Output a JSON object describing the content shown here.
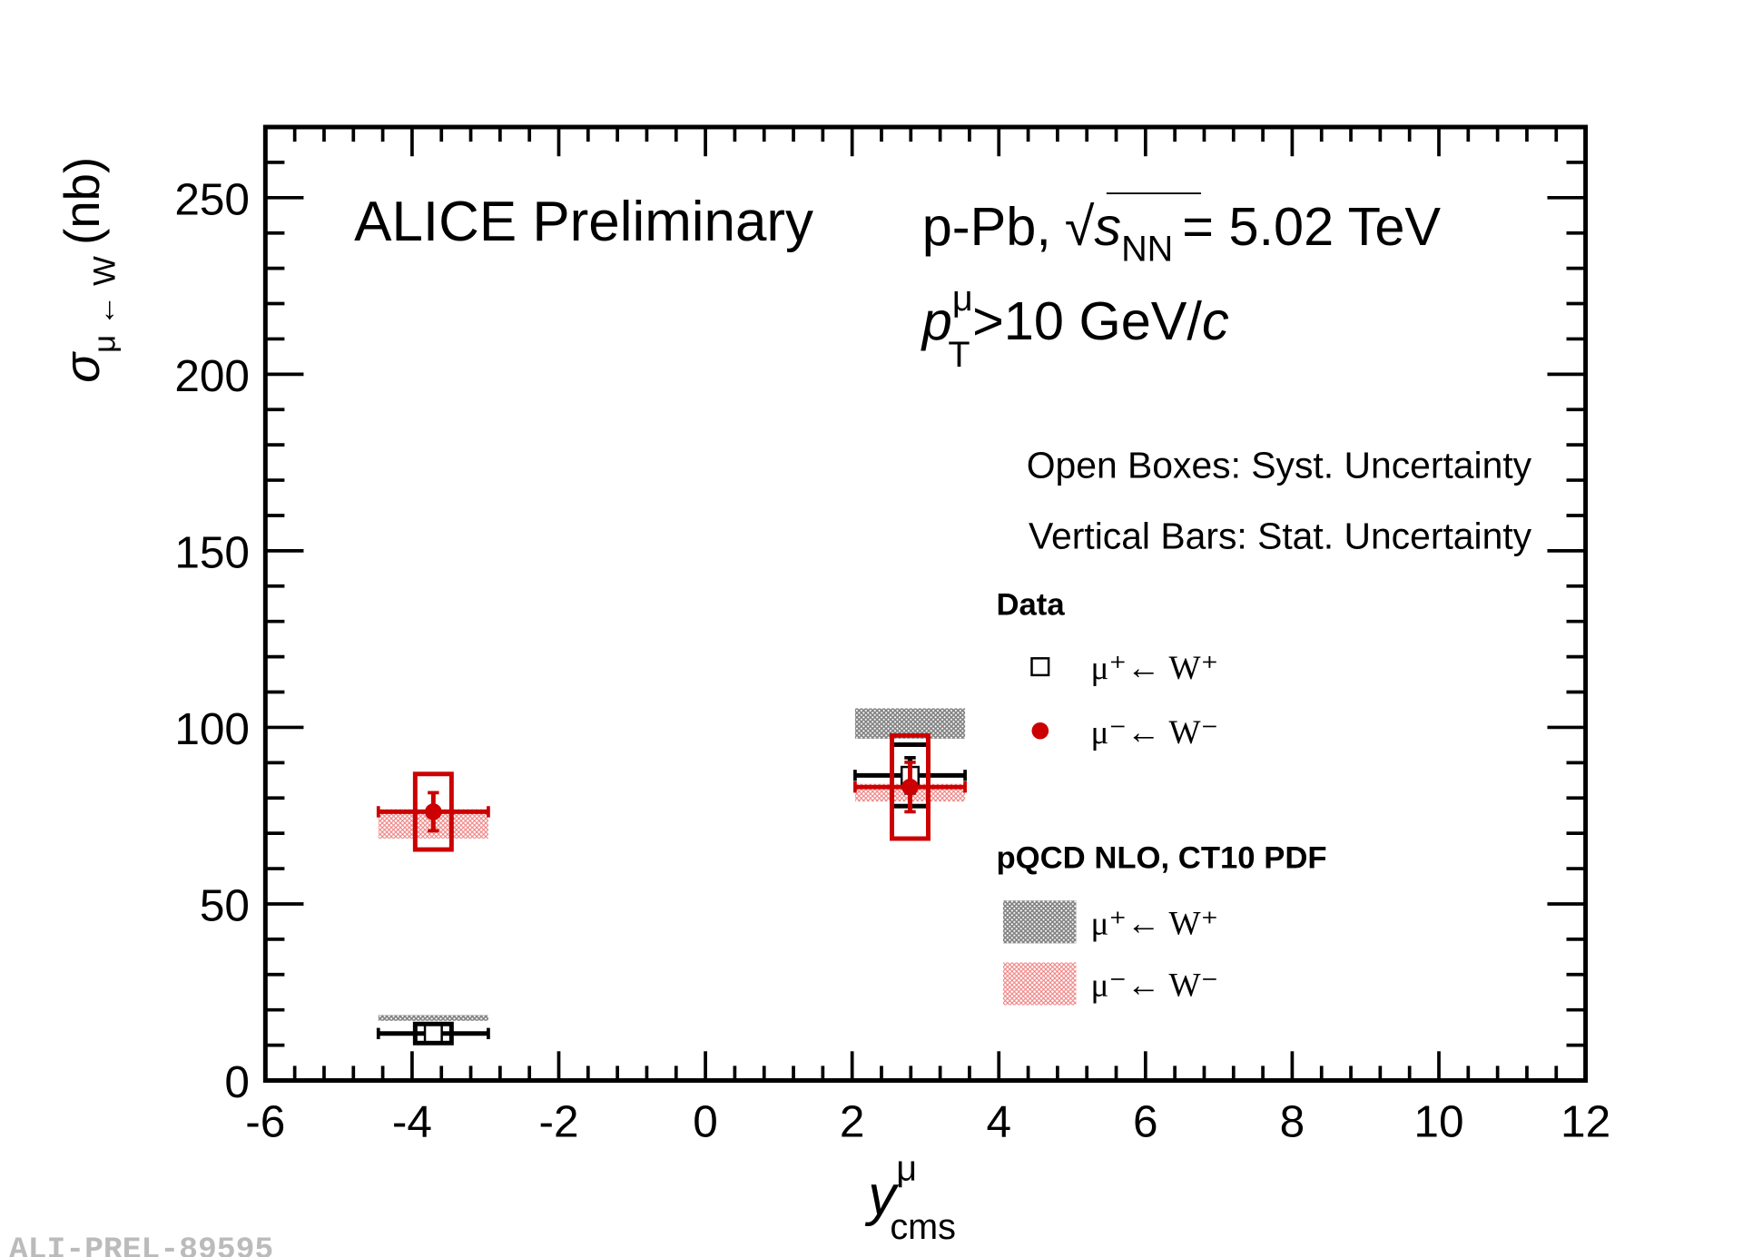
{
  "chart_data": {
    "type": "errorbar",
    "title": "ALICE Preliminary",
    "collision": "p-Pb,",
    "energy_symbol": "s",
    "energy_subscript": "NN",
    "energy": "= 5.02 TeV",
    "cut_symbol": "p",
    "cut_superscript": "μ",
    "cut_subscript": "T",
    "cut": ">10 GeV/",
    "cut_unit": "c",
    "note_syst": "Open Boxes: Syst. Uncertainty",
    "note_stat": "Vertical Bars: Stat. Uncertainty",
    "data_legend_title": "Data",
    "theory_legend_title": "pQCD NLO, CT10 PDF",
    "y_label": "σ",
    "y_label_subscript": "μ ← W",
    "y_label_unit": "(nb)",
    "x_label": "y",
    "x_label_superscript": "μ",
    "x_label_subscript": "cms",
    "watermark": "ALI-PREL-89595",
    "xlim": [
      -6,
      12
    ],
    "ylim": [
      0,
      270
    ],
    "xticks": [
      -6,
      -4,
      -2,
      0,
      2,
      4,
      6,
      8,
      10,
      12
    ],
    "yticks": [
      0,
      50,
      100,
      150,
      200,
      250
    ],
    "minor_divisions": 5,
    "series": [
      {
        "name": "μ⁺← W⁺",
        "color": "#000000",
        "marker": "open-square",
        "x": [
          -3.71,
          2.79
        ],
        "xerr": [
          0.75,
          0.75
        ],
        "values": [
          13.3,
          86.4
        ],
        "stat": [
          1.5,
          5
        ],
        "syst": [
          2.7,
          8.7
        ]
      },
      {
        "name": "μ⁻← W⁻",
        "color": "#cc0000",
        "marker": "filled-circle",
        "x": [
          -3.71,
          2.79
        ],
        "xerr": [
          0.75,
          0.75
        ],
        "values": [
          76.1,
          83.1
        ],
        "stat": [
          5.4,
          7
        ],
        "syst": [
          10.7,
          14.6
        ]
      }
    ],
    "theory": [
      {
        "name": "μ⁺← W⁺",
        "color": "#808080",
        "x": [
          -3.71,
          2.79
        ],
        "xerr": [
          0.75,
          0.75
        ],
        "low": [
          16.9,
          96.8
        ],
        "high": [
          18.5,
          105.4
        ]
      },
      {
        "name": "μ⁻← W⁻",
        "color": "#f08080",
        "x": [
          -3.71,
          2.79
        ],
        "xerr": [
          0.75,
          0.75
        ],
        "low": [
          68.5,
          79
        ],
        "high": [
          76.8,
          84
        ]
      }
    ]
  }
}
